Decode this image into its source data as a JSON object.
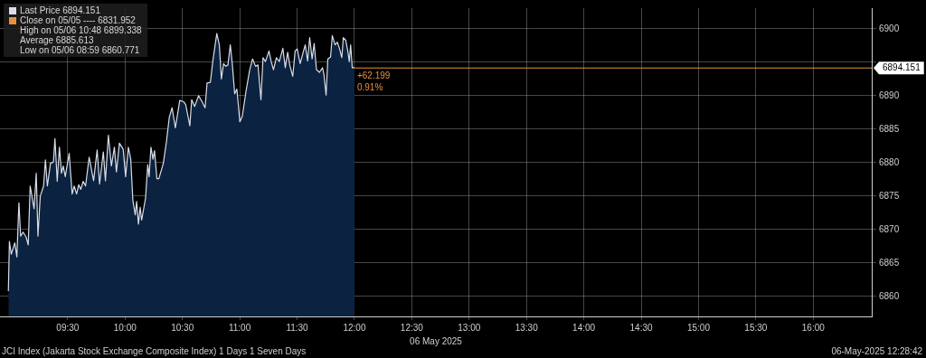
{
  "chart_data": {
    "type": "area",
    "xlabel": "06 May 2025",
    "xlim": [
      8.91,
      16.51
    ],
    "ylim": [
      6857,
      6903.1
    ],
    "xticks": [
      {
        "value": 9.5,
        "label": "09:30"
      },
      {
        "value": 10,
        "label": "10:00"
      },
      {
        "value": 10.5,
        "label": "10:30"
      },
      {
        "value": 11,
        "label": "11:00"
      },
      {
        "value": 11.5,
        "label": "11:30"
      },
      {
        "value": 12,
        "label": "12:00"
      },
      {
        "value": 12.5,
        "label": "12:30"
      },
      {
        "value": 13,
        "label": "13:00"
      },
      {
        "value": 13.5,
        "label": "13:30"
      },
      {
        "value": 14,
        "label": "14:00"
      },
      {
        "value": 14.5,
        "label": "14:30"
      },
      {
        "value": 15,
        "label": "15:00"
      },
      {
        "value": 15.5,
        "label": "15:30"
      },
      {
        "value": 16,
        "label": "16:00"
      }
    ],
    "yticks": [
      6860,
      6865,
      6870,
      6875,
      6880,
      6885,
      6890,
      {
        "value": 6895,
        "label": null
      },
      6900
    ],
    "grid": true,
    "series": [
      {
        "color": "#d8dde8",
        "x": [
          8.983,
          8.992,
          9.008,
          9.039,
          9.057,
          9.075,
          9.09,
          9.111,
          9.137,
          9.156,
          9.173,
          9.207,
          9.226,
          9.241,
          9.261,
          9.29,
          9.306,
          9.323,
          9.35,
          9.376,
          9.389,
          9.409,
          9.428,
          9.446,
          9.461,
          9.479,
          9.513,
          9.539,
          9.557,
          9.578,
          9.596,
          9.614,
          9.635,
          9.656,
          9.687,
          9.726,
          9.757,
          9.778,
          9.811,
          9.829,
          9.855,
          9.881,
          9.907,
          9.925,
          9.951,
          9.984,
          10.005,
          10.029,
          10.05,
          10.068,
          10.089,
          10.101,
          10.117,
          10.132,
          10.145,
          10.179,
          10.198,
          10.21,
          10.226,
          10.244,
          10.257,
          10.278,
          10.295,
          10.334,
          10.361,
          10.386,
          10.41,
          10.439,
          10.477,
          10.511,
          10.529,
          10.565,
          10.581,
          10.607,
          10.641,
          10.672,
          10.698,
          10.715,
          10.744,
          10.765,
          10.8,
          10.822,
          10.84,
          10.859,
          10.879,
          10.897,
          10.918,
          10.936,
          10.956,
          10.975,
          11.001,
          11.022,
          11.055,
          11.086,
          11.112,
          11.138,
          11.159,
          11.185,
          11.203,
          11.224,
          11.255,
          11.273,
          11.294,
          11.32,
          11.345,
          11.376,
          11.397,
          11.418,
          11.436,
          11.462,
          11.483,
          11.501,
          11.527,
          11.553,
          11.571,
          11.592,
          11.61,
          11.631,
          11.649,
          11.669,
          11.695,
          11.722,
          11.734,
          11.753,
          11.768,
          11.792,
          11.807,
          11.831,
          11.851,
          11.869,
          11.89,
          11.903,
          11.924,
          11.942,
          11.955,
          11.967,
          11.981,
          12.0
        ],
        "values": [
          6860.8,
          6868.2,
          6866.3,
          6868.0,
          6865.9,
          6874.0,
          6869.0,
          6869.6,
          6868.9,
          6867.7,
          6876.5,
          6873.1,
          6878.4,
          6869.0,
          6875.0,
          6876.5,
          6880.4,
          6876.5,
          6879.9,
          6880.1,
          6883.6,
          6877.2,
          6882.3,
          6878.4,
          6879.5,
          6877.9,
          6881.4,
          6875.3,
          6876.5,
          6875.3,
          6876.7,
          6876.0,
          6877.2,
          6876.5,
          6880.8,
          6877.3,
          6881.9,
          6876.8,
          6881.6,
          6877.3,
          6884.1,
          6879.5,
          6882.3,
          6878.6,
          6882.9,
          6882.0,
          6877.9,
          6882.3,
          6880.5,
          6874.4,
          6872.2,
          6874.2,
          6870.8,
          6873.3,
          6871.4,
          6874.7,
          6879.7,
          6877.9,
          6882.3,
          6880.5,
          6881.8,
          6877.6,
          6877.6,
          6879.9,
          6883.1,
          6886.8,
          6888.2,
          6885.2,
          6889.3,
          6889.1,
          6888.7,
          6885.5,
          6889.4,
          6888.4,
          6890.0,
          6889.1,
          6888.2,
          6891.9,
          6892.0,
          6895.1,
          6899.3,
          6897.6,
          6892.5,
          6894.8,
          6894.4,
          6894.6,
          6897.6,
          6894.6,
          6890.3,
          6891.0,
          6886.1,
          6886.9,
          6890.7,
          6893.8,
          6895.5,
          6894.4,
          6894.6,
          6889.4,
          6895.7,
          6895.1,
          6896.7,
          6895.2,
          6893.9,
          6895.7,
          6895.1,
          6897.1,
          6894.2,
          6896.5,
          6894.6,
          6892.9,
          6896.7,
          6897.0,
          6894.8,
          6896.5,
          6897.6,
          6895.2,
          6898.7,
          6895.5,
          6897.8,
          6893.9,
          6893.5,
          6894.2,
          6893.2,
          6890.1,
          6895.5,
          6895.8,
          6899.0,
          6897.6,
          6898.0,
          6897.1,
          6895.7,
          6898.7,
          6898.3,
          6896.7,
          6895.1,
          6897.6,
          6894.2,
          6894.2
        ]
      }
    ],
    "ref_lines": [
      {
        "axis": "y",
        "value": 6894.151,
        "label": "6894.151",
        "color": "#e8913a"
      }
    ],
    "annotations": [
      "Last Price 6894.151",
      "Close on 05/05 ---- 6831.952",
      "High on 05/06 10:48 6899.338",
      "Average 6885.613",
      "Low on 05/06 08:59 6860.771",
      {
        "text": "+62.199",
        "x": 12,
        "y": 6894.151
      },
      {
        "text": "0.91%",
        "x": 12,
        "y": 6894.151
      },
      "JCI Index (Jakarta Stock Exchange Composite Index) 1 Days 1 Seven Days",
      "06-May-2025 12:28:42"
    ]
  }
}
